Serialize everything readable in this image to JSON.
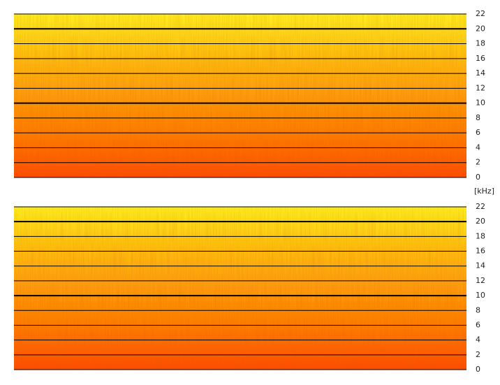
{
  "chart_data": [
    {
      "type": "spectrogram",
      "ylim": [
        0,
        22
      ],
      "yticks": [
        0,
        2,
        4,
        6,
        8,
        10,
        12,
        14,
        16,
        18,
        20,
        22
      ],
      "major_ticks": [
        10,
        20
      ],
      "grid": true,
      "colors": [
        "#fff01e",
        "#ffc00e",
        "#ff9c08",
        "#ff7a04",
        "#ff4c00"
      ]
    },
    {
      "type": "spectrogram",
      "ylabel": "[kHz]",
      "ylim": [
        0,
        22
      ],
      "yticks": [
        0,
        2,
        4,
        6,
        8,
        10,
        12,
        14,
        16,
        18,
        20,
        22
      ],
      "major_ticks": [
        10,
        20
      ],
      "grid": true,
      "colors": [
        "#fff01e",
        "#ffc00e",
        "#ff9c08",
        "#ff7a04",
        "#ff4c00"
      ]
    }
  ]
}
